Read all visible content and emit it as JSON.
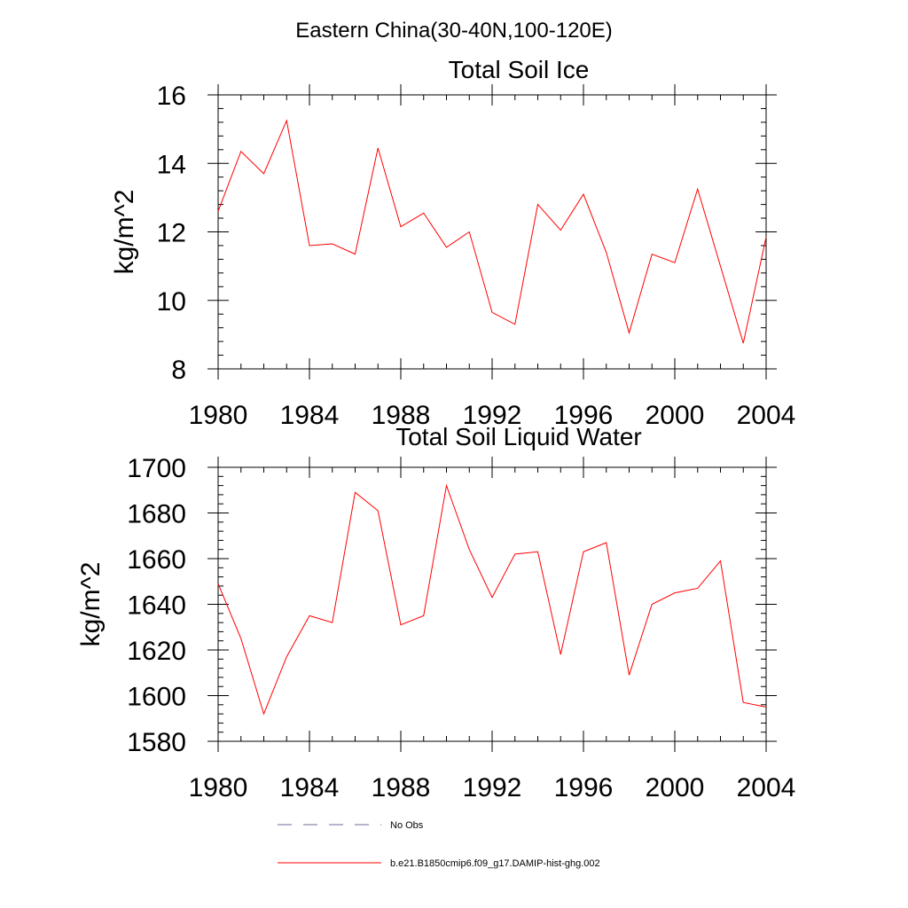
{
  "figure_title": "Eastern China(30-40N,100-120E)",
  "colors": {
    "model_line": "#ff0000",
    "obs_line": "#6a6a9a",
    "axis": "#000000"
  },
  "legend": {
    "obs_label": "No Obs",
    "model_label": "b.e21.B1850cmip6.f09_g17.DAMIP-hist-ghg.002"
  },
  "chart_data": [
    {
      "type": "line",
      "title": "Total Soil Ice",
      "xlabel": "",
      "ylabel": "kg/m^2",
      "xlim": [
        1980,
        2004
      ],
      "ylim": [
        8,
        16
      ],
      "xticks": [
        1980,
        1984,
        1988,
        1992,
        1996,
        2000,
        2004
      ],
      "yticks": [
        8,
        10,
        12,
        14,
        16
      ],
      "grid": false,
      "x": [
        1980,
        1981,
        1982,
        1983,
        1984,
        1985,
        1986,
        1987,
        1988,
        1989,
        1990,
        1991,
        1992,
        1993,
        1994,
        1995,
        1996,
        1997,
        1998,
        1999,
        2000,
        2001,
        2002,
        2003,
        2004
      ],
      "series": [
        {
          "name": "b.e21.B1850cmip6.f09_g17.DAMIP-hist-ghg.002",
          "values": [
            12.6,
            14.35,
            13.7,
            15.25,
            11.6,
            11.65,
            11.35,
            14.45,
            12.15,
            12.55,
            11.55,
            12.0,
            9.65,
            9.3,
            12.8,
            12.05,
            13.1,
            11.4,
            9.05,
            11.35,
            11.1,
            13.25,
            11.0,
            8.75,
            11.85
          ]
        }
      ]
    },
    {
      "type": "line",
      "title": "Total Soil Liquid Water",
      "xlabel": "",
      "ylabel": "kg/m^2",
      "xlim": [
        1980,
        2004
      ],
      "ylim": [
        1580,
        1700
      ],
      "xticks": [
        1980,
        1984,
        1988,
        1992,
        1996,
        2000,
        2004
      ],
      "yticks": [
        1580,
        1600,
        1620,
        1640,
        1660,
        1680,
        1700
      ],
      "grid": false,
      "x": [
        1980,
        1981,
        1982,
        1983,
        1984,
        1985,
        1986,
        1987,
        1988,
        1989,
        1990,
        1991,
        1992,
        1993,
        1994,
        1995,
        1996,
        1997,
        1998,
        1999,
        2000,
        2001,
        2002,
        2003,
        2004
      ],
      "series": [
        {
          "name": "b.e21.B1850cmip6.f09_g17.DAMIP-hist-ghg.002",
          "values": [
            1649,
            1625,
            1592,
            1617,
            1635,
            1632,
            1689,
            1681,
            1631,
            1635,
            1692,
            1664,
            1643,
            1662,
            1663,
            1618,
            1663,
            1667,
            1609,
            1640,
            1645,
            1647,
            1659,
            1597,
            1595
          ]
        }
      ]
    }
  ]
}
